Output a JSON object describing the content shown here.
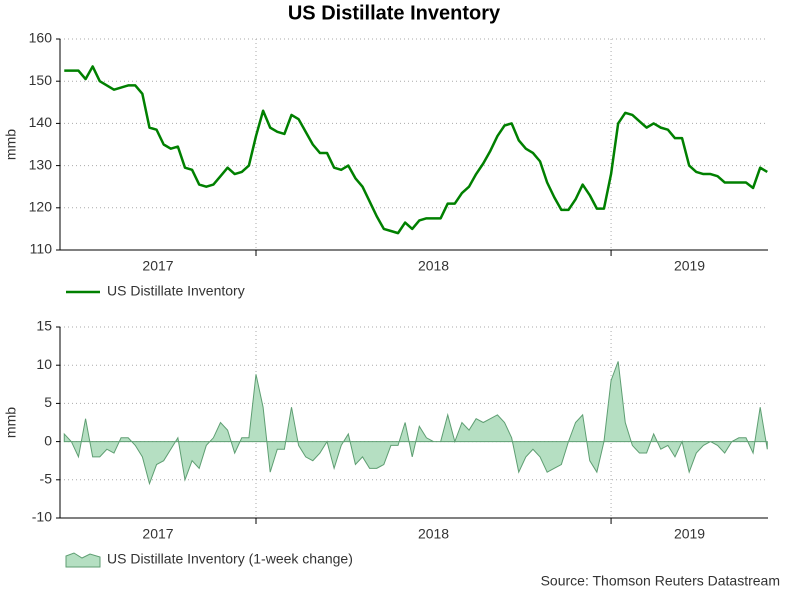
{
  "title": "US Distillate Inventory",
  "source": "Source: Thomson Reuters Datastream",
  "chart_data": [
    {
      "type": "line",
      "ylabel": "mmb",
      "x": [
        2017.46,
        2017.48,
        2017.5,
        2017.52,
        2017.54,
        2017.56,
        2017.58,
        2017.6,
        2017.62,
        2017.64,
        2017.66,
        2017.68,
        2017.7,
        2017.72,
        2017.74,
        2017.76,
        2017.78,
        2017.8,
        2017.82,
        2017.84,
        2017.86,
        2017.88,
        2017.9,
        2017.92,
        2017.94,
        2017.96,
        2017.98,
        2018.0,
        2018.02,
        2018.04,
        2018.06,
        2018.08,
        2018.1,
        2018.12,
        2018.14,
        2018.16,
        2018.18,
        2018.2,
        2018.22,
        2018.24,
        2018.26,
        2018.28,
        2018.3,
        2018.32,
        2018.34,
        2018.36,
        2018.38,
        2018.4,
        2018.42,
        2018.44,
        2018.46,
        2018.48,
        2018.5,
        2018.52,
        2018.54,
        2018.56,
        2018.58,
        2018.6,
        2018.62,
        2018.64,
        2018.66,
        2018.68,
        2018.7,
        2018.72,
        2018.74,
        2018.76,
        2018.78,
        2018.8,
        2018.82,
        2018.84,
        2018.86,
        2018.88,
        2018.9,
        2018.92,
        2018.94,
        2018.96,
        2018.98,
        2019.0,
        2019.02,
        2019.04,
        2019.06,
        2019.08,
        2019.1,
        2019.12,
        2019.14,
        2019.16,
        2019.18,
        2019.2,
        2019.22,
        2019.24,
        2019.26,
        2019.28,
        2019.3,
        2019.32,
        2019.34,
        2019.36,
        2019.38,
        2019.4,
        2019.42,
        2019.44
      ],
      "series": [
        {
          "name": "US Distillate Inventory",
          "color": "#008000",
          "values": [
            152.5,
            152.5,
            152.5,
            150.5,
            153.5,
            150,
            149,
            148,
            148.5,
            149,
            149,
            147,
            139,
            138.5,
            135,
            134,
            134.5,
            129.5,
            129,
            125.5,
            125,
            125.5,
            127.5,
            129.5,
            128,
            128.5,
            130,
            137,
            143,
            139,
            138,
            137.5,
            142,
            141,
            138,
            135,
            133,
            133,
            129.5,
            129,
            130,
            127,
            125,
            121.5,
            118,
            115,
            114.5,
            114,
            116.5,
            115,
            117,
            117.5,
            117.5,
            117.5,
            121,
            121,
            123.5,
            125,
            128,
            130.5,
            133.5,
            137,
            139.5,
            140,
            136,
            134,
            133,
            131,
            126,
            122.5,
            119.5,
            119.5,
            122,
            125.5,
            123,
            119.8,
            119.8,
            128,
            140,
            142.5,
            142,
            140.5,
            139,
            140,
            139,
            138.5,
            136.5,
            136.5,
            130,
            128.5,
            128,
            128,
            127.5,
            126,
            126,
            126,
            126,
            124.7,
            129.5,
            128.5
          ]
        }
      ],
      "xlim": [
        2017.448,
        2019.442
      ],
      "xticks": [
        2017,
        2018,
        2019
      ],
      "ylim": [
        110,
        160
      ],
      "yticks": [
        110,
        120,
        130,
        140,
        150,
        160
      ],
      "grid": true
    },
    {
      "type": "area",
      "ylabel": "mmb",
      "x": [
        2017.46,
        2017.48,
        2017.5,
        2017.52,
        2017.54,
        2017.56,
        2017.58,
        2017.6,
        2017.62,
        2017.64,
        2017.66,
        2017.68,
        2017.7,
        2017.72,
        2017.74,
        2017.76,
        2017.78,
        2017.8,
        2017.82,
        2017.84,
        2017.86,
        2017.88,
        2017.9,
        2017.92,
        2017.94,
        2017.96,
        2017.98,
        2018.0,
        2018.02,
        2018.04,
        2018.06,
        2018.08,
        2018.1,
        2018.12,
        2018.14,
        2018.16,
        2018.18,
        2018.2,
        2018.22,
        2018.24,
        2018.26,
        2018.28,
        2018.3,
        2018.32,
        2018.34,
        2018.36,
        2018.38,
        2018.4,
        2018.42,
        2018.44,
        2018.46,
        2018.48,
        2018.5,
        2018.52,
        2018.54,
        2018.56,
        2018.58,
        2018.6,
        2018.62,
        2018.64,
        2018.66,
        2018.68,
        2018.7,
        2018.72,
        2018.74,
        2018.76,
        2018.78,
        2018.8,
        2018.82,
        2018.84,
        2018.86,
        2018.88,
        2018.9,
        2018.92,
        2018.94,
        2018.96,
        2018.98,
        2019.0,
        2019.02,
        2019.04,
        2019.06,
        2019.08,
        2019.1,
        2019.12,
        2019.14,
        2019.16,
        2019.18,
        2019.2,
        2019.22,
        2019.24,
        2019.26,
        2019.28,
        2019.3,
        2019.32,
        2019.34,
        2019.36,
        2019.38,
        2019.4,
        2019.42,
        2019.44
      ],
      "series": [
        {
          "name": "US Distillate Inventory (1-week change)",
          "color": "#b5dfc2",
          "values": [
            1,
            0,
            -2,
            3,
            -2,
            -2,
            -1,
            -1.5,
            0.5,
            0.5,
            -0.5,
            -2,
            -5.5,
            -3,
            -2.5,
            -1,
            0.5,
            -5,
            -2.5,
            -3.5,
            -0.5,
            0.5,
            2.5,
            1.5,
            -1.5,
            0.5,
            0.5,
            8.8,
            4.5,
            -4,
            -1,
            -1,
            4.5,
            -0.5,
            -2,
            -2.5,
            -1.5,
            0,
            -3.5,
            -0.5,
            1,
            -3,
            -2,
            -3.5,
            -3.5,
            -3,
            -0.5,
            -0.5,
            2.5,
            -2,
            2,
            0.5,
            0,
            0,
            3.5,
            0,
            2.5,
            1.5,
            3,
            2.5,
            3,
            3.5,
            2.5,
            0.5,
            -4,
            -2,
            -1,
            -2,
            -4,
            -3.5,
            -3,
            0,
            2.5,
            3.5,
            -2.5,
            -4,
            0,
            8,
            10.5,
            2.5,
            -0.5,
            -1.5,
            -1.5,
            1,
            -1,
            -0.5,
            -2,
            0,
            -4,
            -1.5,
            -0.5,
            0,
            -0.5,
            -1.5,
            0,
            0.5,
            0.5,
            -1.5,
            4.5,
            -1
          ]
        }
      ],
      "xlim": [
        2017.448,
        2019.442
      ],
      "xticks": [
        2017,
        2018,
        2019
      ],
      "ylim": [
        -10,
        15
      ],
      "yticks": [
        -10,
        -5,
        0,
        5,
        10,
        15
      ],
      "grid": true
    }
  ]
}
